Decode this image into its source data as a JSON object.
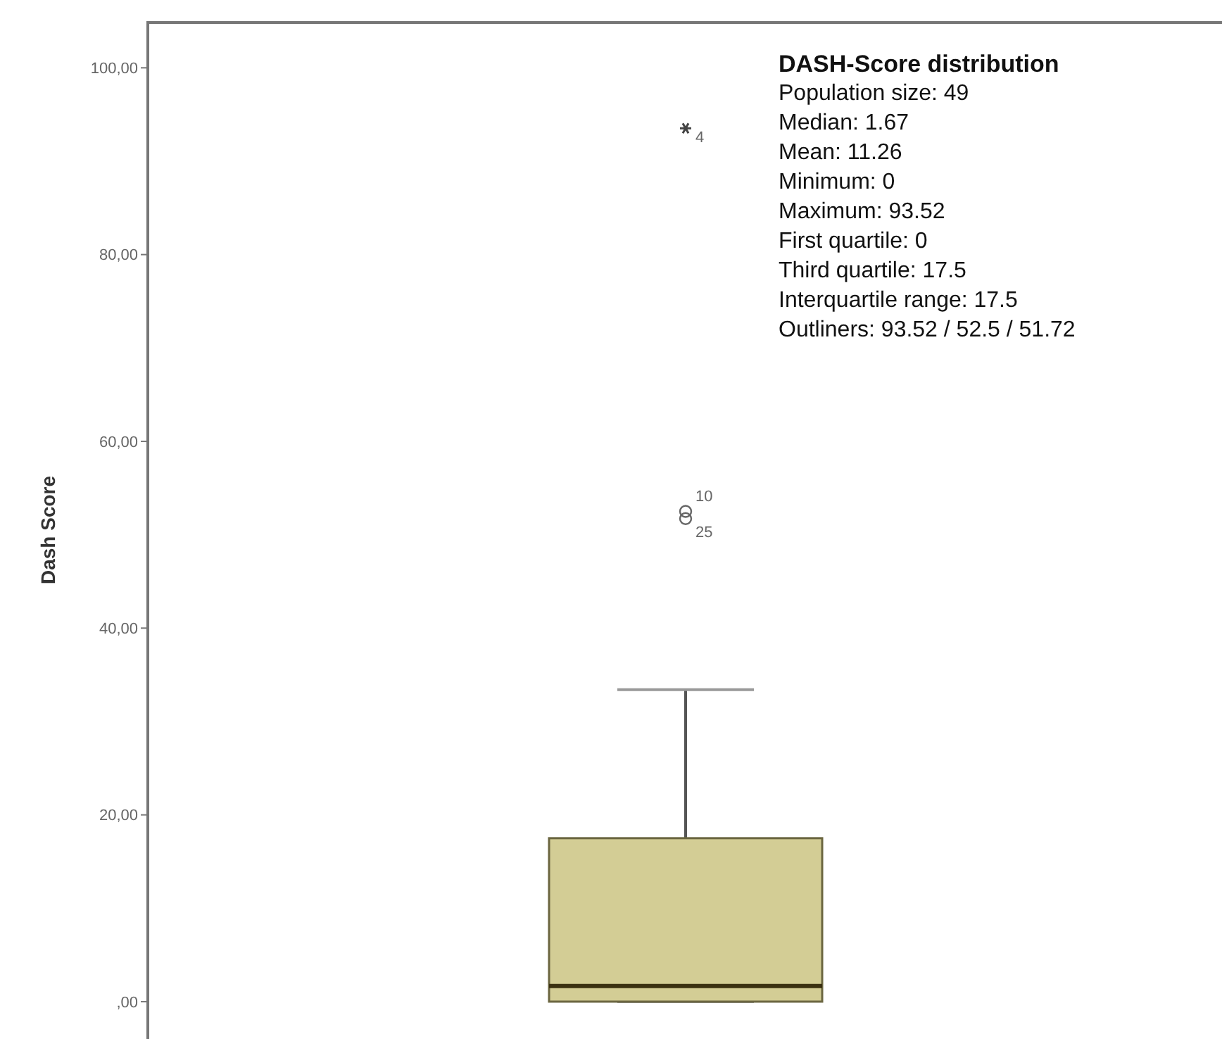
{
  "chart_data": {
    "type": "box",
    "title": "DASH-Score distribution",
    "ylabel": "Dash Score",
    "categories": [
      null
    ],
    "boxes": [
      {
        "low": 0,
        "q1": 0,
        "median": 1.67,
        "q3": 17.5,
        "high": 33.4,
        "outliers": [
          93.52,
          52.5,
          51.72
        ]
      }
    ],
    "color": "#d3cd95",
    "ylim": [
      -4,
      105
    ],
    "yticks": [
      {
        "value": 0,
        "label": ",00"
      },
      {
        "value": 20,
        "label": "20,00"
      },
      {
        "value": 40,
        "label": "40,00"
      },
      {
        "value": 60,
        "label": "60,00"
      },
      {
        "value": 80,
        "label": "80,00"
      },
      {
        "value": 100,
        "label": "100,00"
      }
    ],
    "tick_labels": "y",
    "annotations": [
      "Population size: 49",
      "Median: 1.67",
      "Mean: 11.26",
      "Minimum: 0",
      "Maximum: 93.52",
      "First quartile: 0",
      "Third quartile: 17.5",
      "Interquartile range: 17.5",
      "Outliners: 93.52 / 52.5 / 51.72",
      "4",
      "10",
      "25"
    ]
  }
}
